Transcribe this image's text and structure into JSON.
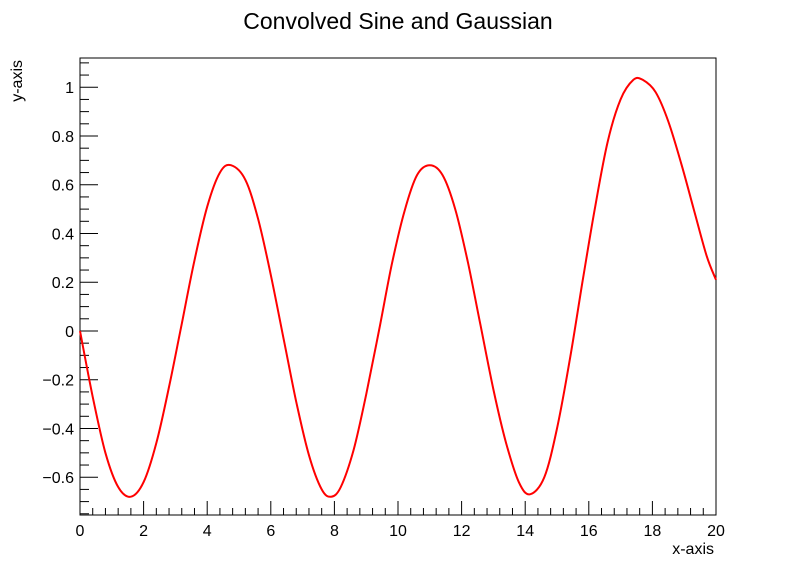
{
  "chart_data": {
    "type": "line",
    "title": "Convolved Sine and Gaussian",
    "xlabel": "x-axis",
    "ylabel": "y-axis",
    "xlim": [
      0,
      20
    ],
    "ylim": [
      -0.755,
      1.12
    ],
    "grid": false,
    "legend": "none",
    "x_ticks": [
      0,
      2,
      4,
      6,
      8,
      10,
      12,
      14,
      16,
      18,
      20
    ],
    "x_tick_labels": [
      "0",
      "2",
      "4",
      "6",
      "8",
      "10",
      "12",
      "14",
      "16",
      "18",
      "20"
    ],
    "y_ticks": [
      -0.6,
      -0.4,
      -0.2,
      0,
      0.2,
      0.4,
      0.6,
      0.8,
      1
    ],
    "y_tick_labels": [
      "−0.6",
      "−0.4",
      "−0.2",
      "0",
      "0.2",
      "0.4",
      "0.6",
      "0.8",
      "1"
    ],
    "series": [
      {
        "color": "#ff0000",
        "x": [
          0,
          0.4,
          0.8,
          1.2,
          1.6,
          2.0,
          2.4,
          2.8,
          3.2,
          3.6,
          4.0,
          4.4,
          4.75,
          5.2,
          5.6,
          6.0,
          6.4,
          6.8,
          7.2,
          7.6,
          7.9,
          8.2,
          8.6,
          9.0,
          9.4,
          9.8,
          10.2,
          10.6,
          11.0,
          11.4,
          11.8,
          12.2,
          12.6,
          13.0,
          13.4,
          13.8,
          14.15,
          14.6,
          15.0,
          15.4,
          15.8,
          16.2,
          16.6,
          17.0,
          17.4,
          17.7,
          18.1,
          18.5,
          18.9,
          19.3,
          19.7,
          20.0
        ],
        "y": [
          0.0,
          -0.27,
          -0.5,
          -0.64,
          -0.68,
          -0.62,
          -0.46,
          -0.23,
          0.03,
          0.29,
          0.51,
          0.65,
          0.68,
          0.62,
          0.46,
          0.23,
          -0.03,
          -0.29,
          -0.51,
          -0.65,
          -0.68,
          -0.64,
          -0.49,
          -0.26,
          0.0,
          0.27,
          0.49,
          0.64,
          0.68,
          0.64,
          0.5,
          0.28,
          0.02,
          -0.24,
          -0.46,
          -0.62,
          -0.67,
          -0.6,
          -0.4,
          -0.12,
          0.2,
          0.51,
          0.78,
          0.95,
          1.03,
          1.03,
          0.98,
          0.86,
          0.69,
          0.5,
          0.31,
          0.21
        ]
      }
    ]
  }
}
